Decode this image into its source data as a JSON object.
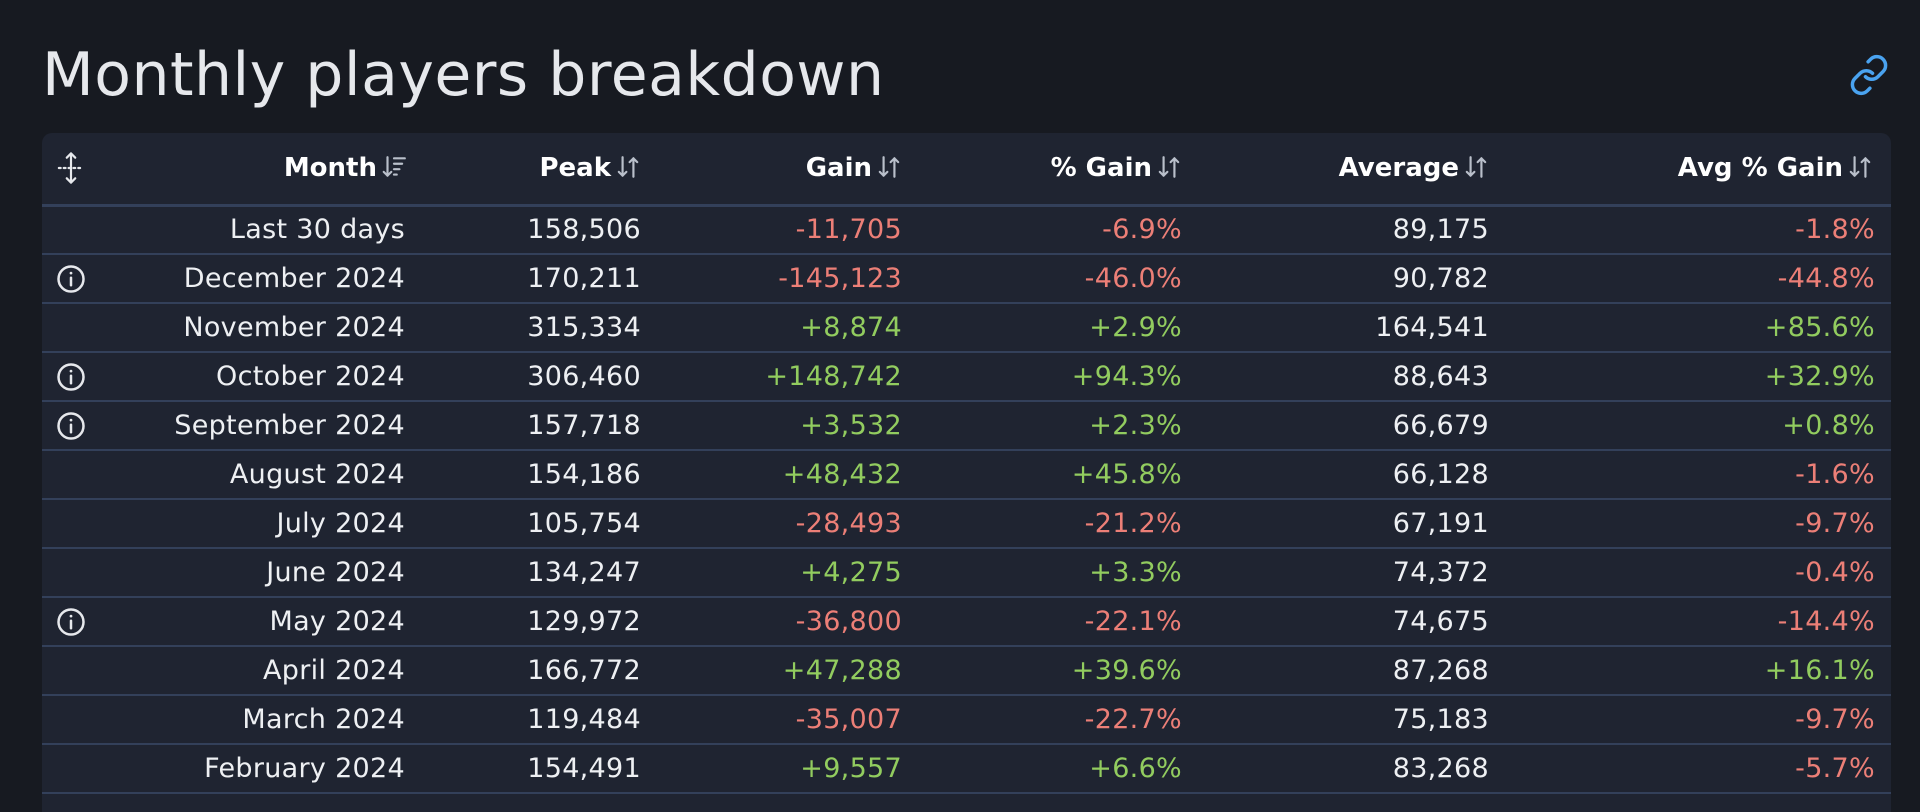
{
  "page": {
    "title": "Monthly players breakdown"
  },
  "colors": {
    "background": "#171a21",
    "table_background": "#1f2431",
    "negative": "#ec7f77",
    "positive": "#92cc5f",
    "link_icon": "#4aa3f0"
  },
  "icons": {
    "link": "link-icon",
    "move": "move-arrows-icon",
    "info": "info-circle-icon",
    "sort_active": "sort-descending-icon",
    "sort_inactive": "sort-updown-icon"
  },
  "table": {
    "columns": [
      {
        "key": "month",
        "label": "Month",
        "sort": "active"
      },
      {
        "key": "peak",
        "label": "Peak",
        "sort": "inactive"
      },
      {
        "key": "gain",
        "label": "Gain",
        "sort": "inactive"
      },
      {
        "key": "pct_gain",
        "label": "% Gain",
        "sort": "inactive"
      },
      {
        "key": "average",
        "label": "Average",
        "sort": "inactive"
      },
      {
        "key": "avg_pct_gain",
        "label": "Avg % Gain",
        "sort": "inactive"
      }
    ],
    "rows": [
      {
        "info": false,
        "month": "Last 30 days",
        "peak": "158,506",
        "gain": "-11,705",
        "pct_gain": "-6.9%",
        "average": "89,175",
        "avg_pct_gain": "-1.8%"
      },
      {
        "info": true,
        "month": "December 2024",
        "peak": "170,211",
        "gain": "-145,123",
        "pct_gain": "-46.0%",
        "average": "90,782",
        "avg_pct_gain": "-44.8%"
      },
      {
        "info": false,
        "month": "November 2024",
        "peak": "315,334",
        "gain": "+8,874",
        "pct_gain": "+2.9%",
        "average": "164,541",
        "avg_pct_gain": "+85.6%"
      },
      {
        "info": true,
        "month": "October 2024",
        "peak": "306,460",
        "gain": "+148,742",
        "pct_gain": "+94.3%",
        "average": "88,643",
        "avg_pct_gain": "+32.9%"
      },
      {
        "info": true,
        "month": "September 2024",
        "peak": "157,718",
        "gain": "+3,532",
        "pct_gain": "+2.3%",
        "average": "66,679",
        "avg_pct_gain": "+0.8%"
      },
      {
        "info": false,
        "month": "August 2024",
        "peak": "154,186",
        "gain": "+48,432",
        "pct_gain": "+45.8%",
        "average": "66,128",
        "avg_pct_gain": "-1.6%"
      },
      {
        "info": false,
        "month": "July 2024",
        "peak": "105,754",
        "gain": "-28,493",
        "pct_gain": "-21.2%",
        "average": "67,191",
        "avg_pct_gain": "-9.7%"
      },
      {
        "info": false,
        "month": "June 2024",
        "peak": "134,247",
        "gain": "+4,275",
        "pct_gain": "+3.3%",
        "average": "74,372",
        "avg_pct_gain": "-0.4%"
      },
      {
        "info": true,
        "month": "May 2024",
        "peak": "129,972",
        "gain": "-36,800",
        "pct_gain": "-22.1%",
        "average": "74,675",
        "avg_pct_gain": "-14.4%"
      },
      {
        "info": false,
        "month": "April 2024",
        "peak": "166,772",
        "gain": "+47,288",
        "pct_gain": "+39.6%",
        "average": "87,268",
        "avg_pct_gain": "+16.1%"
      },
      {
        "info": false,
        "month": "March 2024",
        "peak": "119,484",
        "gain": "-35,007",
        "pct_gain": "-22.7%",
        "average": "75,183",
        "avg_pct_gain": "-9.7%"
      },
      {
        "info": false,
        "month": "February 2024",
        "peak": "154,491",
        "gain": "+9,557",
        "pct_gain": "+6.6%",
        "average": "83,268",
        "avg_pct_gain": "-5.7%"
      }
    ]
  }
}
